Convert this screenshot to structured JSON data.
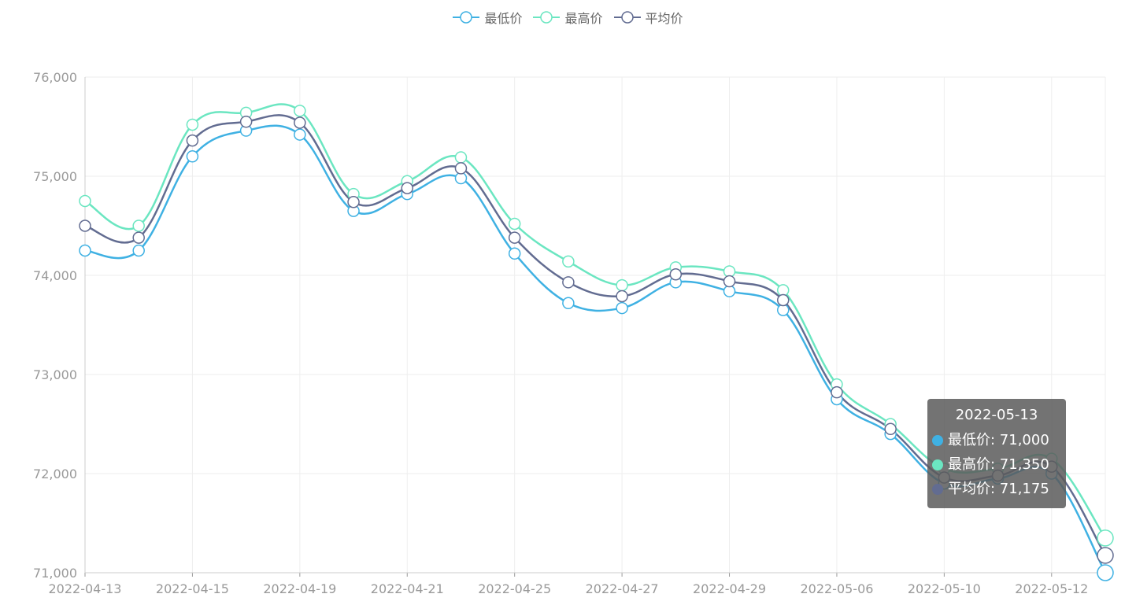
{
  "chart_data": {
    "type": "line",
    "title": "",
    "xlabel": "",
    "ylabel": "",
    "ylim": [
      71000,
      76000
    ],
    "y_ticks": [
      "71,000",
      "72,000",
      "73,000",
      "74,000",
      "75,000",
      "76,000"
    ],
    "x": [
      "2022-04-13",
      "2022-04-14",
      "2022-04-15",
      "2022-04-18",
      "2022-04-19",
      "2022-04-20",
      "2022-04-21",
      "2022-04-22",
      "2022-04-25",
      "2022-04-26",
      "2022-04-27",
      "2022-04-28",
      "2022-04-29",
      "2022-05-05",
      "2022-05-06",
      "2022-05-09",
      "2022-05-10",
      "2022-05-11",
      "2022-05-12",
      "2022-05-13"
    ],
    "x_tick_labels": [
      "2022-04-13",
      "2022-04-15",
      "2022-04-19",
      "2022-04-21",
      "2022-04-25",
      "2022-04-27",
      "2022-04-29",
      "2022-05-06",
      "2022-05-10",
      "2022-05-12"
    ],
    "grid": true,
    "legend_position": "top-center",
    "series": [
      {
        "name": "最低价",
        "color": "#3fb1e3",
        "values": [
          74250,
          74250,
          75200,
          75460,
          75420,
          74650,
          74820,
          74980,
          74220,
          73720,
          73670,
          73930,
          73840,
          73650,
          72750,
          72400,
          71900,
          71950,
          72000,
          71000
        ]
      },
      {
        "name": "最高价",
        "color": "#6be6c1",
        "values": [
          74750,
          74500,
          75520,
          75640,
          75660,
          74820,
          74950,
          75190,
          74520,
          74140,
          73900,
          74080,
          74040,
          73850,
          72900,
          72500,
          72050,
          72050,
          72150,
          71350
        ]
      },
      {
        "name": "平均价",
        "color": "#626c91",
        "values": [
          74500,
          74380,
          75360,
          75550,
          75540,
          74740,
          74880,
          75080,
          74380,
          73930,
          73790,
          74010,
          73940,
          73750,
          72820,
          72450,
          71960,
          71980,
          72070,
          71175
        ]
      }
    ],
    "tooltip": {
      "date": "2022-05-13",
      "rows": [
        "最低价: 71,000",
        "最高价: 71,350",
        "平均价: 71,175"
      ]
    }
  },
  "colors": {
    "low": "#3fb1e3",
    "high": "#6be6c1",
    "avg": "#626c91",
    "grid": "#eeeeee",
    "axis": "#999999"
  }
}
